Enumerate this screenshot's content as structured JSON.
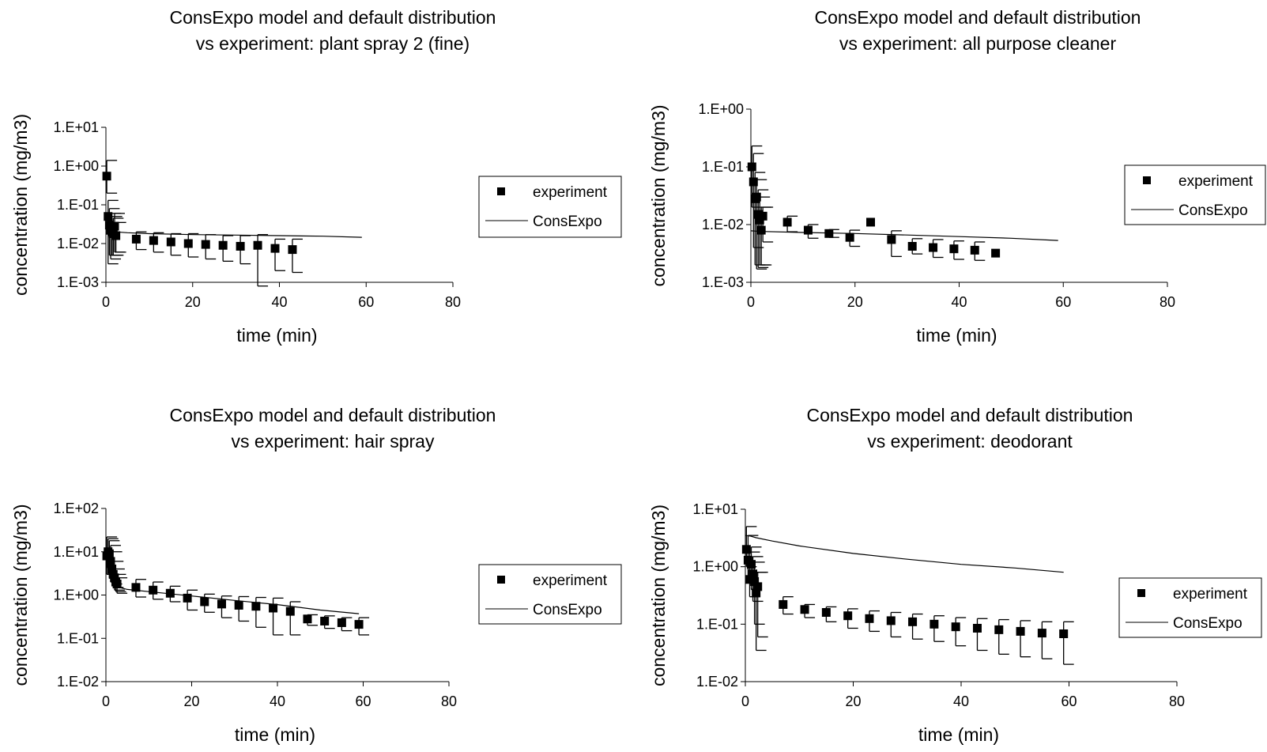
{
  "chart_data": [
    {
      "type": "scatter",
      "title": [
        "ConsExpo model and default distribution",
        "vs experiment: plant spray 2 (fine)"
      ],
      "xlabel": "time (min)",
      "ylabel": "concentration (mg/m3)",
      "xlim": [
        0,
        80
      ],
      "xticks": [
        "0",
        "20",
        "40",
        "60",
        "80"
      ],
      "ylim": [
        0.001,
        10
      ],
      "yscale": "log",
      "yticks": [
        "1.E-03",
        "1.E-02",
        "1.E-01",
        "1.E+00",
        "1.E+01"
      ],
      "legend": [
        "experiment",
        "ConsExpo"
      ],
      "legend_position": "right",
      "series": [
        {
          "name": "experiment",
          "kind": "points-with-error-bars",
          "x": [
            0.2,
            0.5,
            0.8,
            1.1,
            1.4,
            1.7,
            2.0,
            2.3,
            7,
            11,
            15,
            19,
            23,
            27,
            31,
            35,
            39,
            43
          ],
          "y": [
            0.55,
            0.05,
            0.03,
            0.022,
            0.02,
            0.018,
            0.028,
            0.016,
            0.013,
            0.012,
            0.011,
            0.01,
            0.0095,
            0.009,
            0.0085,
            0.009,
            0.0075,
            0.007
          ],
          "yerr_low": [
            0.2,
            0.003,
            0.005,
            0.004,
            0.005,
            0.005,
            0.006,
            0.006,
            0.007,
            0.006,
            0.005,
            0.0045,
            0.004,
            0.0035,
            0.003,
            0.0008,
            0.002,
            0.0018
          ],
          "yerr_high": [
            1.4,
            0.13,
            0.08,
            0.06,
            0.05,
            0.045,
            0.06,
            0.035,
            0.02,
            0.019,
            0.018,
            0.018,
            0.017,
            0.016,
            0.016,
            0.017,
            0.013,
            0.013
          ]
        },
        {
          "name": "ConsExpo",
          "kind": "line",
          "x": [
            0,
            1,
            2,
            5,
            10,
            20,
            30,
            40,
            50,
            59
          ],
          "y": [
            0.03,
            0.022,
            0.02,
            0.019,
            0.018,
            0.017,
            0.0165,
            0.016,
            0.0155,
            0.0145
          ]
        }
      ]
    },
    {
      "type": "scatter",
      "title": [
        "ConsExpo model and default distribution",
        "vs experiment: all purpose cleaner"
      ],
      "xlabel": "time (min)",
      "ylabel": "concentration (mg/m3)",
      "xlim": [
        0,
        80
      ],
      "xticks": [
        "0",
        "20",
        "40",
        "60",
        "80"
      ],
      "ylim": [
        0.001,
        1
      ],
      "yscale": "log",
      "yticks": [
        "1.E-03",
        "1.E-02",
        "1.E-01",
        "1.E+00"
      ],
      "legend": [
        "experiment",
        "ConsExpo"
      ],
      "legend_position": "right",
      "series": [
        {
          "name": "experiment",
          "kind": "points-with-error-bars",
          "x": [
            0.2,
            0.5,
            0.8,
            1.1,
            1.4,
            1.7,
            2.0,
            2.3,
            7,
            11,
            15,
            19,
            23,
            27,
            31,
            35,
            39,
            43,
            47
          ],
          "y": [
            0.1,
            0.055,
            0.028,
            0.03,
            0.015,
            0.012,
            0.008,
            0.014,
            0.011,
            0.008,
            0.007,
            0.006,
            0.011,
            0.0055,
            0.0042,
            0.004,
            0.0038,
            0.0036,
            0.0032
          ],
          "yerr_low": [
            0.02,
            0.004,
            0.002,
            0.0017,
            0.0018,
            0.002,
            0.002,
            0.005,
            0.0075,
            0.0058,
            0.006,
            0.0042,
            null,
            0.0028,
            0.0031,
            0.0027,
            0.0025,
            0.0024,
            null
          ],
          "yerr_high": [
            0.23,
            0.17,
            0.08,
            0.06,
            0.04,
            0.03,
            0.02,
            0.02,
            0.014,
            0.01,
            0.0082,
            0.008,
            0.025,
            0.0078,
            0.0057,
            0.0055,
            0.0052,
            0.005,
            null
          ]
        },
        {
          "name": "ConsExpo",
          "kind": "line",
          "x": [
            0,
            1,
            2,
            10,
            20,
            30,
            40,
            50,
            59
          ],
          "y": [
            0.0078,
            0.0077,
            0.0076,
            0.0073,
            0.007,
            0.0066,
            0.0062,
            0.0058,
            0.0053
          ]
        }
      ]
    },
    {
      "type": "scatter",
      "title": [
        "ConsExpo model and default distribution",
        "vs experiment: hair spray"
      ],
      "xlabel": "time (min)",
      "ylabel": "concentration (mg/m3)",
      "xlim": [
        0,
        80
      ],
      "xticks": [
        "0",
        "20",
        "40",
        "60",
        "80"
      ],
      "ylim": [
        0.01,
        100
      ],
      "yscale": "log",
      "yticks": [
        "1.E-02",
        "1.E-01",
        "1.E+00",
        "1.E+01",
        "1.E+02"
      ],
      "legend": [
        "experiment",
        "ConsExpo"
      ],
      "legend_position": "right",
      "series": [
        {
          "name": "experiment",
          "kind": "points-with-error-bars",
          "x": [
            0.2,
            0.5,
            0.8,
            1.1,
            1.4,
            1.7,
            2.0,
            2.3,
            2.6,
            7,
            11,
            15,
            19,
            23,
            27,
            31,
            35,
            39,
            43,
            47,
            51,
            55,
            59
          ],
          "y": [
            8,
            10,
            9,
            6,
            4,
            3,
            2.5,
            2,
            1.8,
            1.5,
            1.3,
            1.1,
            0.85,
            0.7,
            0.62,
            0.58,
            0.55,
            0.5,
            0.42,
            0.28,
            0.25,
            0.23,
            0.21
          ],
          "yerr_low": [
            3,
            3,
            2.5,
            2,
            1.8,
            1.5,
            1.3,
            1.2,
            1.1,
            0.9,
            0.8,
            0.7,
            0.45,
            0.4,
            0.3,
            0.25,
            0.18,
            0.12,
            0.12,
            0.2,
            0.17,
            0.15,
            0.12
          ],
          "yerr_high": [
            22,
            20,
            18,
            14,
            10,
            6,
            4,
            3,
            2.5,
            2.3,
            2,
            1.6,
            1.3,
            1.05,
            0.95,
            0.92,
            0.88,
            0.85,
            0.7,
            0.35,
            0.33,
            0.3,
            0.3
          ]
        },
        {
          "name": "ConsExpo",
          "kind": "line",
          "x": [
            0,
            0.5,
            1,
            2,
            5,
            10,
            20,
            30,
            40,
            50,
            59
          ],
          "y": [
            6,
            4,
            2.5,
            1.6,
            1.35,
            1.2,
            0.95,
            0.75,
            0.6,
            0.45,
            0.37
          ]
        }
      ]
    },
    {
      "type": "scatter",
      "title": [
        "ConsExpo model and default distribution",
        "vs experiment: deodorant"
      ],
      "xlabel": "time (min)",
      "ylabel": "concentration (mg/m3)",
      "xlim": [
        0,
        80
      ],
      "xticks": [
        "0",
        "20",
        "40",
        "60",
        "80"
      ],
      "ylim": [
        0.01,
        10
      ],
      "yscale": "log",
      "yticks": [
        "1.E-02",
        "1.E-01",
        "1.E+00",
        "1.E+01"
      ],
      "legend": [
        "experiment",
        "ConsExpo"
      ],
      "legend_position": "right",
      "series": [
        {
          "name": "experiment",
          "kind": "points-with-error-bars",
          "x": [
            0.2,
            0.5,
            0.8,
            1.1,
            1.4,
            1.7,
            2.0,
            2.3,
            7,
            11,
            15,
            19,
            23,
            27,
            31,
            35,
            39,
            43,
            47,
            51,
            55,
            59
          ],
          "y": [
            2.0,
            1.3,
            0.6,
            1.1,
            0.75,
            0.55,
            0.35,
            0.45,
            0.22,
            0.18,
            0.16,
            0.14,
            0.125,
            0.115,
            0.11,
            0.1,
            0.09,
            0.085,
            0.08,
            0.075,
            0.07,
            0.068
          ],
          "yerr_low": [
            1.0,
            0.6,
            0.3,
            0.4,
            0.25,
            0.1,
            0.035,
            0.06,
            0.15,
            0.13,
            0.11,
            0.085,
            0.075,
            0.06,
            0.055,
            0.05,
            0.042,
            0.035,
            0.03,
            0.027,
            0.025,
            0.02
          ],
          "yerr_high": [
            5.0,
            3.5,
            1.8,
            2.2,
            1.5,
            1.2,
            0.8,
            0.8,
            0.3,
            0.22,
            0.2,
            0.185,
            0.17,
            0.16,
            0.15,
            0.14,
            0.13,
            0.125,
            0.12,
            0.115,
            0.11,
            0.11
          ]
        },
        {
          "name": "ConsExpo",
          "kind": "line",
          "x": [
            0,
            1,
            2,
            5,
            10,
            20,
            30,
            40,
            50,
            59
          ],
          "y": [
            3.5,
            3.4,
            3.2,
            2.8,
            2.3,
            1.7,
            1.35,
            1.1,
            0.95,
            0.8
          ]
        }
      ]
    }
  ]
}
